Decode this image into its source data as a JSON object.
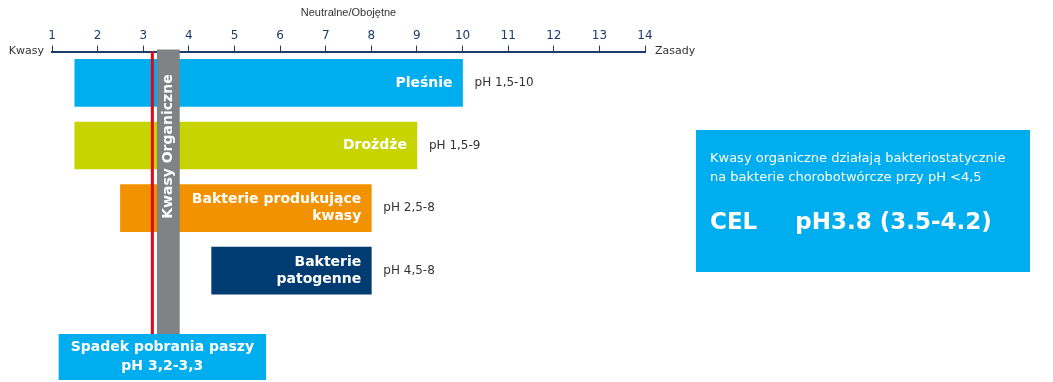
{
  "chart_data": {
    "type": "bar",
    "orientation": "horizontal",
    "xlabel": "Neutralne/Obojętne",
    "categories": [
      "Pleśnie",
      "Drożdże",
      "Bakterie produkujące kwasy",
      "Bakterie patogenne"
    ],
    "base": [
      1.5,
      1.5,
      2.5,
      4.5
    ],
    "values": [
      8.5,
      7.5,
      5.5,
      3.5
    ],
    "colors": [
      "#00aeef",
      "#c8d400",
      "#f39200",
      "#003b71"
    ],
    "value_labels": [
      "pH 1,5-10",
      "pH 1,5-9",
      "pH 2,5-8",
      "pH 4,5-8"
    ],
    "xlim": [
      1,
      14
    ],
    "xticks": [
      1,
      2,
      3,
      4,
      5,
      6,
      7,
      8,
      9,
      10,
      11,
      12,
      13,
      14
    ],
    "grid": false,
    "legend": false,
    "ref_lines": [
      {
        "axis": "x",
        "value": 3.2,
        "label": "Spadek pobrania paszy\npH 3,2-3,3",
        "color": "#e30613"
      }
    ],
    "bands": [
      {
        "axis": "x",
        "from": 3.3,
        "to": 3.8,
        "label": "Kwasy Organiczne",
        "color": "#7f8385"
      }
    ],
    "annotations": [
      "Kwasy",
      "Zasady",
      "Kwasy organiczne działają bakteriostatycznie na bakterie chorobotwórcze przy pH <4,5",
      "CEL",
      "pH3.8 (3.5-4.2)"
    ]
  }
}
